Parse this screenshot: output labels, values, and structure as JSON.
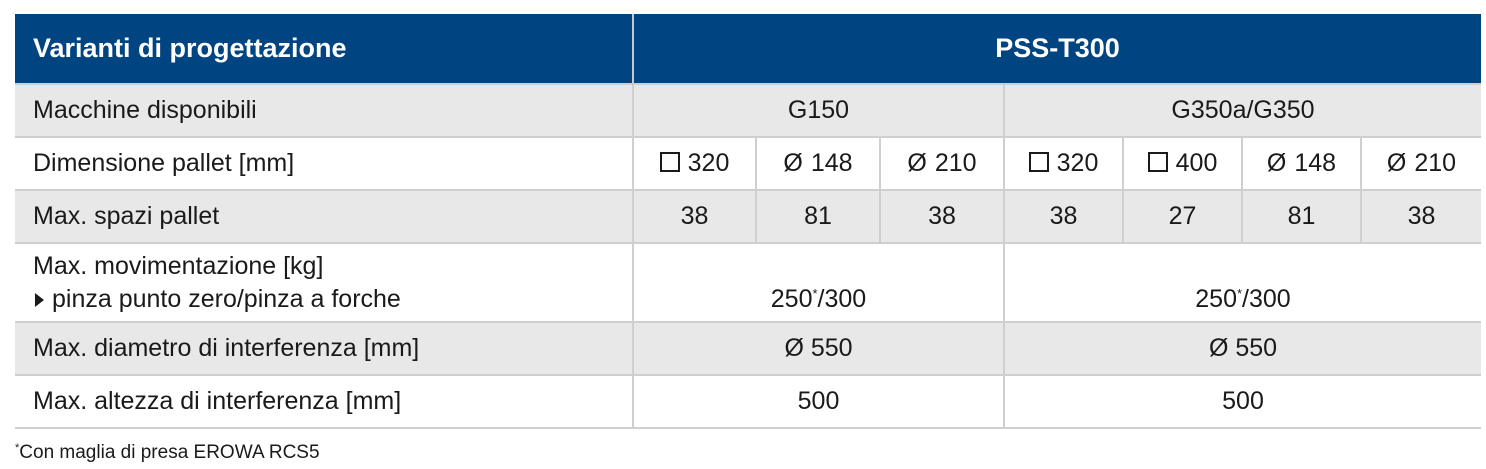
{
  "header": {
    "col1": "Varianti di progettazione",
    "col2": "PSS-T300"
  },
  "rows": {
    "machines": {
      "label": "Macchine disponibili",
      "g150": "G150",
      "g350": "G350a/G350"
    },
    "pallet_size": {
      "label": "Dimensione pallet [mm]",
      "cells": [
        {
          "symbol": "square",
          "value": "320"
        },
        {
          "symbol": "Ø",
          "value": "148"
        },
        {
          "symbol": "Ø",
          "value": "210"
        },
        {
          "symbol": "square",
          "value": "320"
        },
        {
          "symbol": "square",
          "value": "400"
        },
        {
          "symbol": "Ø",
          "value": "148"
        },
        {
          "symbol": "Ø",
          "value": "210"
        }
      ]
    },
    "pallet_spaces": {
      "label": "Max. spazi pallet",
      "values": [
        "38",
        "81",
        "38",
        "38",
        "27",
        "81",
        "38"
      ]
    },
    "handling": {
      "label": "Max. movimentazione [kg]",
      "sublabel": "pinza punto zero/pinza a forche",
      "g150_base": "250",
      "g150_mark": "*",
      "g150_rest": "/300",
      "g350_base": "250",
      "g350_mark": "*",
      "g350_rest": "/300"
    },
    "diameter": {
      "label": "Max. diametro di interferenza [mm]",
      "g150": "Ø 550",
      "g350": "Ø 550"
    },
    "height": {
      "label": "Max. altezza di interferenza [mm]",
      "g150": "500",
      "g350": "500"
    }
  },
  "footnote": {
    "mark": "*",
    "text": "Con maglia di presa EROWA RCS5"
  }
}
